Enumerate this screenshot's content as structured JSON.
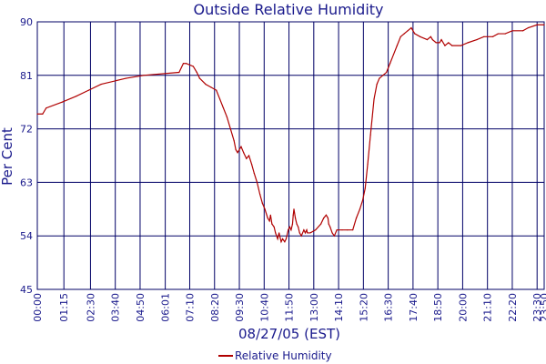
{
  "chart_data": {
    "type": "line",
    "title": "Outside Relative Humidity",
    "xlabel": "08/27/05 (EST)",
    "ylabel": "Per Cent",
    "ylim": [
      45,
      90
    ],
    "yticks": [
      45,
      54,
      63,
      72,
      81,
      90
    ],
    "xlim": [
      0,
      1430
    ],
    "xticks": [
      {
        "label": "00:00",
        "min": 0
      },
      {
        "label": "01:15",
        "min": 75
      },
      {
        "label": "02:30",
        "min": 150
      },
      {
        "label": "03:40",
        "min": 220
      },
      {
        "label": "04:50",
        "min": 290
      },
      {
        "label": "06:01",
        "min": 361
      },
      {
        "label": "07:10",
        "min": 430
      },
      {
        "label": "08:20",
        "min": 500
      },
      {
        "label": "09:30",
        "min": 570
      },
      {
        "label": "10:40",
        "min": 640
      },
      {
        "label": "11:50",
        "min": 710
      },
      {
        "label": "13:00",
        "min": 780
      },
      {
        "label": "14:10",
        "min": 850
      },
      {
        "label": "15:20",
        "min": 920
      },
      {
        "label": "16:30",
        "min": 990
      },
      {
        "label": "17:40",
        "min": 1060
      },
      {
        "label": "18:50",
        "min": 1130
      },
      {
        "label": "20:00",
        "min": 1200
      },
      {
        "label": "21:10",
        "min": 1270
      },
      {
        "label": "22:20",
        "min": 1340
      },
      {
        "label": "23:30",
        "min": 1410
      },
      {
        "label": "23:50",
        "min": 1430
      }
    ],
    "grid": true,
    "legend": "bottom",
    "colors": {
      "series": "#b00000",
      "grid": "#000066",
      "text": "#1a1a8c"
    },
    "series": [
      {
        "name": "Relative Humidity",
        "x_minutes": [
          0,
          15,
          25,
          70,
          110,
          145,
          180,
          250,
          300,
          400,
          412,
          420,
          440,
          450,
          458,
          475,
          490,
          505,
          515,
          525,
          535,
          545,
          555,
          560,
          565,
          575,
          582,
          590,
          597,
          605,
          612,
          620,
          628,
          635,
          642,
          650,
          655,
          658,
          662,
          668,
          672,
          678,
          682,
          688,
          692,
          698,
          702,
          708,
          712,
          716,
          720,
          722,
          724,
          728,
          732,
          736,
          740,
          745,
          752,
          756,
          760,
          762,
          770,
          785,
          800,
          808,
          815,
          820,
          822,
          826,
          832,
          838,
          845,
          860,
          875,
          890,
          900,
          910,
          918,
          925,
          932,
          940,
          945,
          950,
          958,
          965,
          975,
          985,
          995,
          1005,
          1015,
          1025,
          1035,
          1045,
          1055,
          1065,
          1080,
          1100,
          1110,
          1115,
          1125,
          1135,
          1140,
          1150,
          1160,
          1170,
          1195,
          1215,
          1240,
          1260,
          1285,
          1300,
          1320,
          1340,
          1370,
          1385,
          1410,
          1430
        ],
        "values": [
          74.5,
          74.5,
          75.5,
          76.5,
          77.5,
          78.5,
          79.5,
          80.5,
          81.0,
          81.5,
          83.0,
          83.0,
          82.5,
          81.5,
          80.5,
          79.5,
          79.0,
          78.5,
          77.0,
          75.5,
          74.0,
          72.0,
          70.0,
          68.5,
          68.0,
          69.0,
          68.0,
          67.0,
          67.5,
          66.0,
          64.5,
          63.0,
          61.0,
          59.5,
          58.5,
          57.0,
          56.5,
          57.5,
          56.0,
          55.5,
          54.5,
          53.5,
          54.5,
          53.0,
          53.5,
          53.0,
          53.5,
          55.0,
          55.5,
          55.0,
          56.0,
          57.5,
          58.5,
          57.0,
          56.0,
          55.5,
          54.5,
          54.0,
          55.0,
          54.5,
          55.0,
          54.5,
          54.5,
          55.0,
          56.0,
          57.0,
          57.5,
          57.0,
          56.0,
          55.5,
          54.5,
          54.0,
          55.0,
          55.0,
          55.0,
          55.0,
          57.0,
          58.5,
          60.0,
          62.0,
          66.0,
          71.0,
          74.0,
          77.0,
          79.5,
          80.5,
          81.0,
          81.5,
          83.0,
          84.5,
          86.0,
          87.5,
          88.0,
          88.5,
          89.0,
          88.0,
          87.5,
          87.0,
          87.5,
          87.0,
          86.5,
          86.5,
          87.0,
          86.0,
          86.5,
          86.0,
          86.0,
          86.5,
          87.0,
          87.5,
          87.5,
          88.0,
          88.0,
          88.5,
          88.5,
          89.0,
          89.5,
          89.5
        ]
      }
    ]
  }
}
